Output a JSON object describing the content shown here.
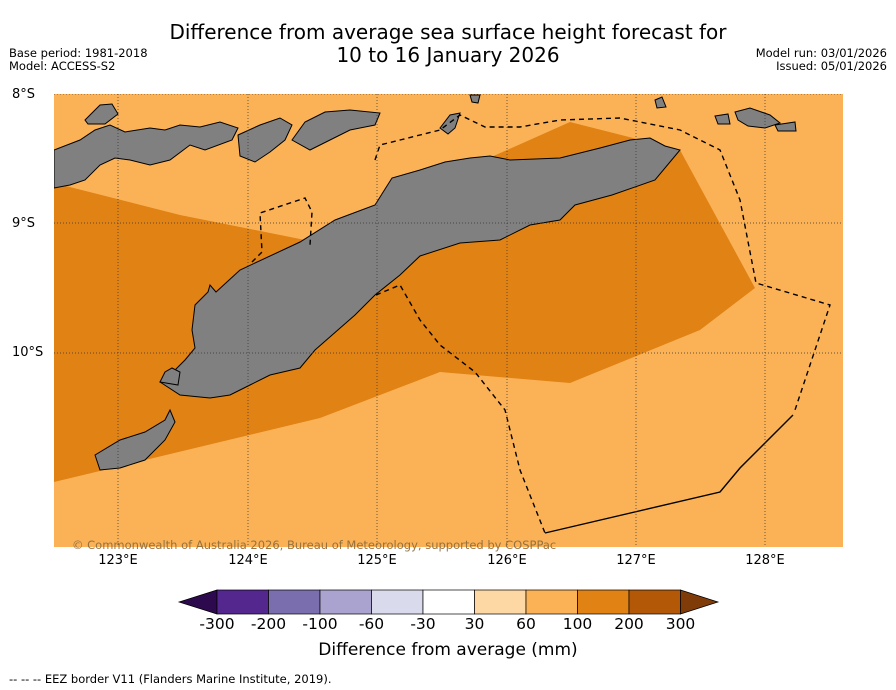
{
  "title": {
    "line1": "Difference from average sea surface height forecast for",
    "line2": "10 to 16 January 2026"
  },
  "meta": {
    "base_period": "Base period: 1981-2018",
    "model": "Model: ACCESS-S2",
    "model_run": "Model run: 03/01/2026",
    "issued": "Issued: 05/01/2026"
  },
  "axes": {
    "lat_labels": [
      "8°S",
      "9°S",
      "10°S"
    ],
    "lon_labels": [
      "123°E",
      "124°E",
      "125°E",
      "126°E",
      "127°E",
      "128°E"
    ]
  },
  "copyright": "© Commonwealth of Australia 2026, Bureau of Meteorology, supported by COSPPac",
  "colorbar": {
    "ticks": [
      "-300",
      "-200",
      "-100",
      "-60",
      "-30",
      "30",
      "60",
      "100",
      "200",
      "300"
    ],
    "colors": [
      "#2d0a4e",
      "#54278f",
      "#7b6eae",
      "#aaa3cf",
      "#d9daeb",
      "#ffffff",
      "#fdd8a5",
      "#fbb257",
      "#e08214",
      "#b35806",
      "#7f3b08"
    ],
    "label": "Difference from average (mm)"
  },
  "map_fill": {
    "ocean_high": "#fbb257",
    "ocean_higher": "#e08214",
    "land": "#808080"
  },
  "footnote": "--  --  -- EEZ border V11 (Flanders Marine Institute, 2019)."
}
